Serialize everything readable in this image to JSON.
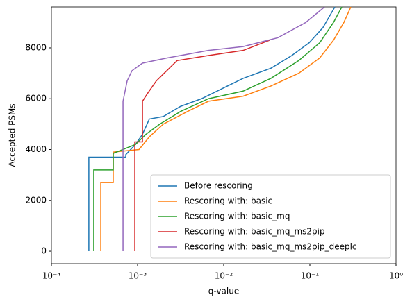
{
  "chart_data": {
    "type": "line",
    "x_label": "q-value",
    "y_label": "Accepted PSMs",
    "x_scale": "log",
    "grid": false,
    "legend_position": "lower right",
    "xlim": [
      0.0001,
      1
    ],
    "ylim": [
      -490,
      9610
    ],
    "xticks": [
      {
        "value": 0.0001,
        "label": "10⁻⁴"
      },
      {
        "value": 0.001,
        "label": "10⁻³"
      },
      {
        "value": 0.01,
        "label": "10⁻²"
      },
      {
        "value": 0.1,
        "label": "10⁻¹"
      },
      {
        "value": 1,
        "label": "10⁰"
      }
    ],
    "yticks": [
      0,
      2000,
      4000,
      6000,
      8000
    ],
    "series": [
      {
        "name": "Before rescoring",
        "color": "#1f77b4",
        "x": [
          0.000272,
          0.000272,
          0.00073,
          0.00073,
          0.000946,
          0.00114,
          0.00137,
          0.00199,
          0.00316,
          0.00552,
          0.00964,
          0.0168,
          0.0353,
          0.0617,
          0.0982,
          0.142,
          0.195
        ],
        "values": [
          0,
          3700,
          3700,
          3800,
          4200,
          4600,
          5200,
          5300,
          5700,
          6000,
          6400,
          6800,
          7200,
          7700,
          8200,
          8800,
          9610
        ]
      },
      {
        "name": "Rescoring with: basic",
        "color": "#ff7f0e",
        "x": [
          0.000374,
          0.000374,
          0.000522,
          0.000522,
          0.00104,
          0.00137,
          0.00199,
          0.00381,
          0.00665,
          0.0168,
          0.0353,
          0.0743,
          0.13,
          0.188,
          0.248,
          0.299
        ],
        "values": [
          0,
          2700,
          2700,
          3900,
          4000,
          4500,
          5000,
          5500,
          5900,
          6100,
          6500,
          7000,
          7600,
          8300,
          9000,
          9610
        ]
      },
      {
        "name": "Rescoring with: basic_mq",
        "color": "#2ca02c",
        "x": [
          0.00031,
          0.00031,
          0.000522,
          0.000522,
          0.000946,
          0.00125,
          0.00181,
          0.00316,
          0.00665,
          0.0168,
          0.0353,
          0.0743,
          0.13,
          0.188,
          0.235
        ],
        "values": [
          0,
          3200,
          3200,
          3850,
          4200,
          4600,
          5000,
          5500,
          6000,
          6300,
          6800,
          7500,
          8200,
          9000,
          9610
        ]
      },
      {
        "name": "Rescoring with: basic_mq_ms2pip",
        "color": "#d62728",
        "x": [
          0.000929,
          0.000929,
          0.00114,
          0.00114,
          0.0013,
          0.00165,
          0.00218,
          0.00288,
          0.00665,
          0.0168,
          0.034
        ],
        "values": [
          0,
          4300,
          4300,
          5900,
          6200,
          6700,
          7100,
          7500,
          7700,
          7900,
          8300
        ]
      },
      {
        "name": "Rescoring with: basic_mq_ms2pip_deeplc",
        "color": "#9467bd",
        "x": [
          0.000678,
          0.000678,
          0.000757,
          0.000861,
          0.00114,
          0.00218,
          0.00665,
          0.0168,
          0.0426,
          0.0896,
          0.148
        ],
        "values": [
          0,
          5900,
          6700,
          7100,
          7400,
          7600,
          7900,
          8050,
          8400,
          9000,
          9610
        ]
      }
    ]
  }
}
